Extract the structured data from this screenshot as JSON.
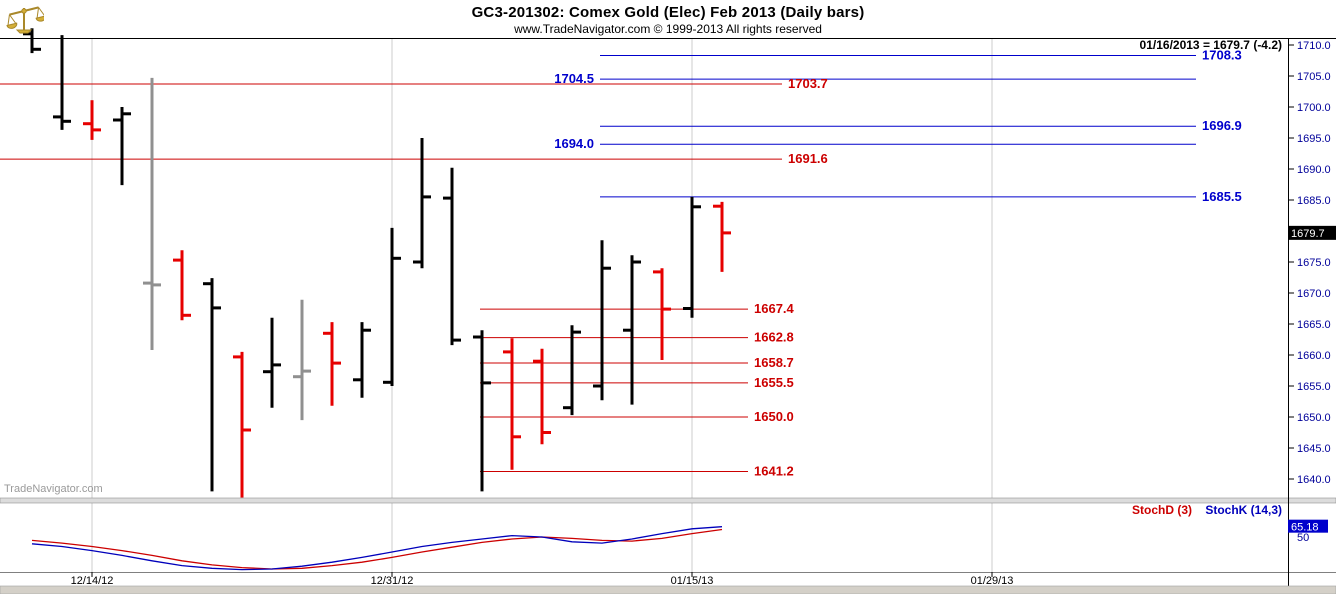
{
  "header": {
    "title": "GC3-201302:  Comex Gold (Elec) Feb 2013  (Daily bars)",
    "subtitle": "www.TradeNavigator.com © 1999-2013 All rights reserved"
  },
  "quote_line": "01/16/2013 = 1679.7 (-4.2)",
  "watermark": "TradeNavigator.com",
  "colors": {
    "bars": {
      "black": "#000000",
      "red": "#e60000",
      "gray": "#909090"
    },
    "level_blue": "#0000cc",
    "level_red": "#cc0000",
    "axis_text": "#000099",
    "grid": "#cccccc",
    "stoch_k": "#0000bb",
    "stoch_d": "#cc0000",
    "badge_bg": "#000000",
    "badge_text": "#ffffff",
    "stoch_badge_bg": "#0000cc",
    "scrollbar": "#d4d0c8"
  },
  "chart_data": {
    "type": "bar",
    "subtype": "ohlc-daily-bars",
    "instrument": "GC3-201302 Comex Gold (Elec) Feb 2013",
    "last_date": "01/16/2013",
    "last_price": 1679.7,
    "last_price_label": "1679.7",
    "change": -4.2,
    "y_axis": {
      "ticks": [
        1710,
        1705,
        1700,
        1695,
        1690,
        1685,
        1680,
        1675,
        1670,
        1665,
        1660,
        1655,
        1650,
        1645,
        1640
      ]
    },
    "x_axis": {
      "gridlines": [
        {
          "label": "12/14/12",
          "bar_index": 2
        },
        {
          "label": "12/31/12",
          "bar_index": 12
        },
        {
          "label": "01/15/13",
          "bar_index": 22
        },
        {
          "label": "01/29/13",
          "bar_index": 32
        }
      ]
    },
    "levels": [
      {
        "value": 1708.3,
        "label": "1708.3",
        "color": "blue",
        "extent": "right",
        "label_side": "right"
      },
      {
        "value": 1704.5,
        "label": "1704.5",
        "color": "blue",
        "extent": "right",
        "label_side": "left"
      },
      {
        "value": 1703.7,
        "label": "1703.7",
        "color": "red",
        "extent": "left",
        "label_side": "right"
      },
      {
        "value": 1696.9,
        "label": "1696.9",
        "color": "blue",
        "extent": "right",
        "label_side": "right"
      },
      {
        "value": 1694.0,
        "label": "1694.0",
        "color": "blue",
        "extent": "right",
        "label_side": "left"
      },
      {
        "value": 1691.6,
        "label": "1691.6",
        "color": "red",
        "extent": "left",
        "label_side": "right"
      },
      {
        "value": 1685.5,
        "label": "1685.5",
        "color": "blue",
        "extent": "right",
        "label_side": "right"
      },
      {
        "value": 1667.4,
        "label": "1667.4",
        "color": "red",
        "extent": "mid",
        "label_side": "right"
      },
      {
        "value": 1662.8,
        "label": "1662.8",
        "color": "red",
        "extent": "mid",
        "label_side": "right"
      },
      {
        "value": 1658.7,
        "label": "1658.7",
        "color": "red",
        "extent": "mid",
        "label_side": "right"
      },
      {
        "value": 1655.5,
        "label": "1655.5",
        "color": "red",
        "extent": "mid",
        "label_side": "right"
      },
      {
        "value": 1650.0,
        "label": "1650.0",
        "color": "red",
        "extent": "mid",
        "label_side": "right"
      },
      {
        "value": 1641.2,
        "label": "1641.2",
        "color": "red",
        "extent": "mid",
        "label_side": "right"
      }
    ],
    "bars": [
      {
        "date": "12/12/12",
        "color": "black",
        "o": 1711.8,
        "h": 1712.7,
        "l": 1708.7,
        "c": 1709.3
      },
      {
        "date": "12/13/12",
        "color": "black",
        "o": 1698.4,
        "h": 1711.6,
        "l": 1696.3,
        "c": 1697.7
      },
      {
        "date": "12/14/12",
        "color": "red",
        "o": 1697.3,
        "h": 1701.1,
        "l": 1694.7,
        "c": 1696.3
      },
      {
        "date": "12/17/12",
        "color": "black",
        "o": 1697.9,
        "h": 1700.0,
        "l": 1687.4,
        "c": 1698.9
      },
      {
        "date": "12/18/12",
        "color": "gray",
        "o": 1671.6,
        "h": 1704.7,
        "l": 1660.8,
        "c": 1671.3
      },
      {
        "date": "12/19/12",
        "color": "red",
        "o": 1675.3,
        "h": 1676.9,
        "l": 1665.6,
        "c": 1666.4
      },
      {
        "date": "12/20/12",
        "color": "black",
        "o": 1671.5,
        "h": 1672.4,
        "l": 1638.0,
        "c": 1667.6
      },
      {
        "date": "12/21/12",
        "color": "red",
        "o": 1659.7,
        "h": 1660.5,
        "l": 1637.0,
        "c": 1647.9
      },
      {
        "date": "12/24/12",
        "color": "black",
        "o": 1657.3,
        "h": 1666.0,
        "l": 1651.5,
        "c": 1658.4
      },
      {
        "date": "12/26/12",
        "color": "gray",
        "o": 1656.5,
        "h": 1668.9,
        "l": 1649.5,
        "c": 1657.4
      },
      {
        "date": "12/27/12",
        "color": "red",
        "o": 1663.5,
        "h": 1665.3,
        "l": 1651.8,
        "c": 1658.7
      },
      {
        "date": "12/28/12",
        "color": "black",
        "o": 1656.0,
        "h": 1665.3,
        "l": 1653.1,
        "c": 1664.0
      },
      {
        "date": "12/31/12",
        "color": "black",
        "o": 1655.6,
        "h": 1680.5,
        "l": 1655.0,
        "c": 1675.6
      },
      {
        "date": "01/02/13",
        "color": "black",
        "o": 1675.0,
        "h": 1695.0,
        "l": 1674.0,
        "c": 1685.5
      },
      {
        "date": "01/03/13",
        "color": "black",
        "o": 1685.3,
        "h": 1690.2,
        "l": 1661.6,
        "c": 1662.4
      },
      {
        "date": "01/04/13",
        "color": "black",
        "o": 1662.9,
        "h": 1664.0,
        "l": 1638.0,
        "c": 1655.5
      },
      {
        "date": "01/07/13",
        "color": "red",
        "o": 1660.5,
        "h": 1662.7,
        "l": 1641.5,
        "c": 1646.8
      },
      {
        "date": "01/08/13",
        "color": "red",
        "o": 1659.0,
        "h": 1661.0,
        "l": 1645.6,
        "c": 1647.5
      },
      {
        "date": "01/09/13",
        "color": "black",
        "o": 1651.5,
        "h": 1664.8,
        "l": 1650.3,
        "c": 1663.7
      },
      {
        "date": "01/10/13",
        "color": "black",
        "o": 1655.0,
        "h": 1678.5,
        "l": 1652.7,
        "c": 1674.0
      },
      {
        "date": "01/11/13",
        "color": "black",
        "o": 1664.0,
        "h": 1676.1,
        "l": 1652.0,
        "c": 1675.0
      },
      {
        "date": "01/14/13",
        "color": "red",
        "o": 1673.4,
        "h": 1674.0,
        "l": 1659.2,
        "c": 1667.4
      },
      {
        "date": "01/15/13",
        "color": "black",
        "o": 1667.5,
        "h": 1685.5,
        "l": 1666.0,
        "c": 1683.9
      },
      {
        "date": "01/16/13",
        "color": "red",
        "o": 1684.0,
        "h": 1684.7,
        "l": 1673.4,
        "c": 1679.7
      }
    ],
    "indicator": {
      "d_label": "StochD (3)",
      "k_label": "StochK (14,3)",
      "last_value": 65.18,
      "last_value_label": "65.18",
      "mid_label": "50",
      "stoch_k": [
        40,
        36,
        30,
        23,
        15,
        8,
        4,
        2,
        3,
        7,
        13,
        20,
        28,
        36,
        42,
        47,
        52,
        50,
        43,
        41,
        47,
        55,
        62,
        65.18
      ],
      "stoch_d": [
        45,
        41,
        36,
        30,
        23,
        15,
        9,
        5,
        3,
        4,
        8,
        13,
        20,
        28,
        35,
        42,
        47,
        50,
        48,
        45,
        44,
        48,
        55,
        61
      ]
    }
  }
}
